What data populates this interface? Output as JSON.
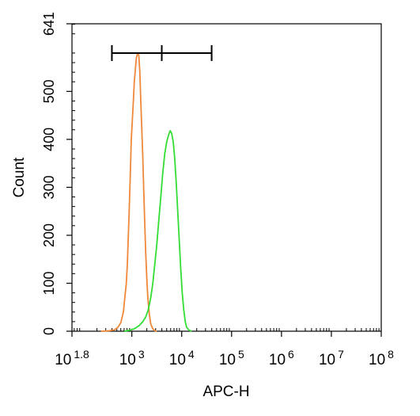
{
  "chart_data": {
    "type": "line",
    "title": "",
    "xlabel": "APC-H",
    "ylabel": "Count",
    "x_scale": "log10",
    "xlim": [
      1.8,
      8
    ],
    "ylim": [
      0,
      641
    ],
    "x_ticks": [
      {
        "exp": 1.8,
        "base": "10",
        "power": "1.8"
      },
      {
        "exp": 3,
        "base": "10",
        "power": "3"
      },
      {
        "exp": 4,
        "base": "10",
        "power": "4"
      },
      {
        "exp": 5,
        "base": "10",
        "power": "5"
      },
      {
        "exp": 6,
        "base": "10",
        "power": "6"
      },
      {
        "exp": 7,
        "base": "10",
        "power": "7"
      },
      {
        "exp": 8,
        "base": "10",
        "power": "8"
      }
    ],
    "y_ticks": [
      0,
      100,
      200,
      300,
      400,
      500,
      641
    ],
    "gate": {
      "log_start": 2.6,
      "log_mid": 3.6,
      "log_end": 4.6
    },
    "series": [
      {
        "color": "#f0883a",
        "points": [
          [
            2.38,
            0
          ],
          [
            2.55,
            1
          ],
          [
            2.65,
            3
          ],
          [
            2.72,
            8
          ],
          [
            2.78,
            18
          ],
          [
            2.83,
            40
          ],
          [
            2.86,
            70
          ],
          [
            2.89,
            100
          ],
          [
            2.91,
            140
          ],
          [
            2.93,
            200
          ],
          [
            2.95,
            260
          ],
          [
            2.97,
            330
          ],
          [
            2.99,
            400
          ],
          [
            3.01,
            440
          ],
          [
            3.03,
            480
          ],
          [
            3.05,
            520
          ],
          [
            3.07,
            545
          ],
          [
            3.09,
            570
          ],
          [
            3.12,
            580
          ],
          [
            3.14,
            575
          ],
          [
            3.16,
            540
          ],
          [
            3.18,
            480
          ],
          [
            3.2,
            420
          ],
          [
            3.22,
            360
          ],
          [
            3.24,
            290
          ],
          [
            3.26,
            220
          ],
          [
            3.28,
            160
          ],
          [
            3.3,
            110
          ],
          [
            3.32,
            70
          ],
          [
            3.35,
            35
          ],
          [
            3.38,
            15
          ],
          [
            3.42,
            5
          ],
          [
            3.46,
            1
          ],
          [
            3.5,
            0
          ]
        ]
      },
      {
        "color": "#33dd33",
        "points": [
          [
            2.85,
            0
          ],
          [
            2.95,
            2
          ],
          [
            3.05,
            5
          ],
          [
            3.15,
            12
          ],
          [
            3.22,
            20
          ],
          [
            3.28,
            30
          ],
          [
            3.33,
            45
          ],
          [
            3.38,
            70
          ],
          [
            3.42,
            100
          ],
          [
            3.46,
            140
          ],
          [
            3.5,
            180
          ],
          [
            3.54,
            230
          ],
          [
            3.58,
            280
          ],
          [
            3.62,
            330
          ],
          [
            3.66,
            370
          ],
          [
            3.7,
            395
          ],
          [
            3.74,
            410
          ],
          [
            3.77,
            418
          ],
          [
            3.8,
            412
          ],
          [
            3.83,
            395
          ],
          [
            3.86,
            360
          ],
          [
            3.89,
            310
          ],
          [
            3.92,
            250
          ],
          [
            3.95,
            190
          ],
          [
            3.98,
            130
          ],
          [
            4.01,
            80
          ],
          [
            4.04,
            45
          ],
          [
            4.07,
            20
          ],
          [
            4.1,
            8
          ],
          [
            4.15,
            2
          ],
          [
            4.2,
            0
          ]
        ]
      }
    ]
  }
}
